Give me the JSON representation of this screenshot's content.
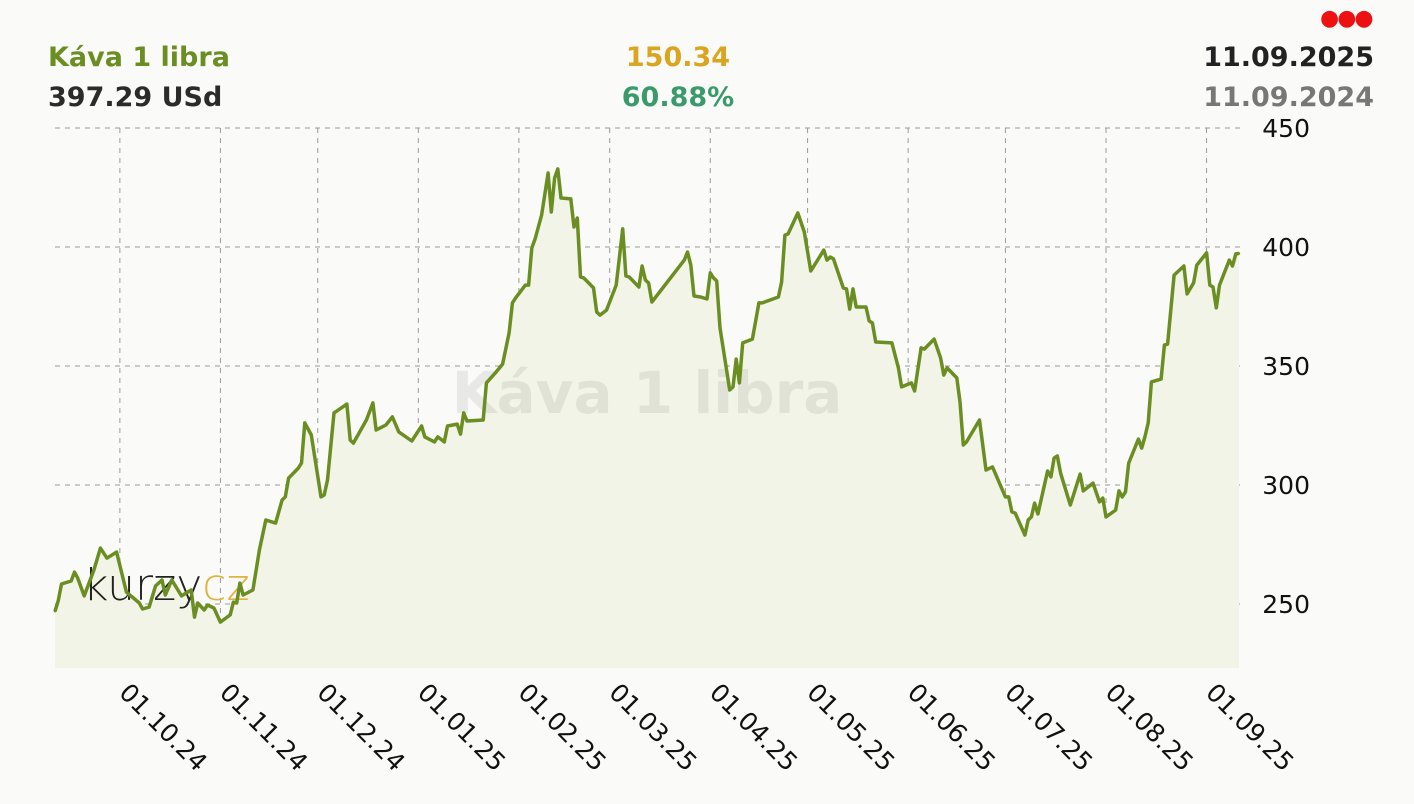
{
  "header": {
    "title": "Káva 1 libra",
    "price": "397.29 USd",
    "change_abs": "150.34",
    "change_pct": "60.88%",
    "date_to": "11.09.2025",
    "date_from": "11.09.2024",
    "menu_icon": "three-dots-menu-icon"
  },
  "colors": {
    "title": "#6b8e23",
    "price": "#2b2b2b",
    "change_abs": "#daa520",
    "change_pct": "#3a9a6a",
    "date_to": "#222222",
    "date_from": "#777777",
    "menu_dots": "#ee1111",
    "line": "#6b8e23",
    "fill": "#f1f4e6",
    "grid": "#9a9a9a",
    "logo_dark": "#222222",
    "logo_accent": "#e0b341"
  },
  "watermark": "Káva 1 libra",
  "logo": {
    "part1": "kurzy",
    "part2": "cz"
  },
  "chart_data": {
    "type": "area",
    "title": "Káva 1 libra",
    "xlabel": "",
    "ylabel": "",
    "xlim": [
      "2024-09-11",
      "2025-09-11"
    ],
    "ylim": [
      223,
      450
    ],
    "y_ticks": [
      450,
      400,
      350,
      300,
      250
    ],
    "y_axis_side": "right",
    "x_ticks": [
      "01.10.24",
      "01.11.24",
      "01.12.24",
      "01.01.25",
      "01.02.25",
      "01.03.25",
      "01.04.25",
      "01.05.25",
      "01.06.25",
      "01.07.25",
      "01.08.25",
      "01.09.25"
    ],
    "grid": true,
    "legend": "none",
    "series": [
      {
        "points": [
          [
            "2024-09-11",
            246.95
          ],
          [
            "2024-09-12",
            251.3
          ],
          [
            "2024-09-13",
            258.4
          ],
          [
            "2024-09-16",
            259.7
          ],
          [
            "2024-09-17",
            263.4
          ],
          [
            "2024-09-18",
            260.9
          ],
          [
            "2024-09-20",
            253.4
          ],
          [
            "2024-09-23",
            264.3
          ],
          [
            "2024-09-25",
            273.5
          ],
          [
            "2024-09-27",
            269.3
          ],
          [
            "2024-09-30",
            271.8
          ],
          [
            "2024-10-03",
            255.0
          ],
          [
            "2024-10-07",
            250.4
          ],
          [
            "2024-10-08",
            247.9
          ],
          [
            "2024-10-10",
            248.7
          ],
          [
            "2024-10-12",
            257.6
          ],
          [
            "2024-10-14",
            260.1
          ],
          [
            "2024-10-15",
            253.8
          ],
          [
            "2024-10-17",
            260.1
          ],
          [
            "2024-10-20",
            253.4
          ],
          [
            "2024-10-23",
            255.9
          ],
          [
            "2024-10-24",
            244.5
          ],
          [
            "2024-10-25",
            250.4
          ],
          [
            "2024-10-27",
            247.5
          ],
          [
            "2024-10-28",
            249.6
          ],
          [
            "2024-10-30",
            248.3
          ],
          [
            "2024-11-01",
            242.4
          ],
          [
            "2024-11-04",
            245.4
          ],
          [
            "2024-11-05",
            250.8
          ],
          [
            "2024-11-06",
            250.4
          ],
          [
            "2024-11-07",
            258.8
          ],
          [
            "2024-11-08",
            253.8
          ],
          [
            "2024-11-11",
            255.9
          ],
          [
            "2024-11-13",
            272.7
          ],
          [
            "2024-11-15",
            285.3
          ],
          [
            "2024-11-18",
            284.0
          ],
          [
            "2024-11-20",
            293.7
          ],
          [
            "2024-11-21",
            295.0
          ],
          [
            "2024-11-22",
            302.9
          ],
          [
            "2024-11-25",
            307.1
          ],
          [
            "2024-11-26",
            309.2
          ],
          [
            "2024-11-27",
            326.1
          ],
          [
            "2024-11-29",
            321.0
          ],
          [
            "2024-12-02",
            295.0
          ],
          [
            "2024-12-03",
            295.8
          ],
          [
            "2024-12-04",
            302.1
          ],
          [
            "2024-12-06",
            330.3
          ],
          [
            "2024-12-10",
            334.0
          ],
          [
            "2024-12-11",
            318.9
          ],
          [
            "2024-12-12",
            317.6
          ],
          [
            "2024-12-16",
            327.3
          ],
          [
            "2024-12-18",
            334.5
          ],
          [
            "2024-12-19",
            323.1
          ],
          [
            "2024-12-22",
            325.2
          ],
          [
            "2024-12-24",
            328.6
          ],
          [
            "2024-12-26",
            322.3
          ],
          [
            "2024-12-30",
            318.5
          ],
          [
            "2025-01-02",
            324.8
          ],
          [
            "2025-01-03",
            320.2
          ],
          [
            "2025-01-06",
            318.1
          ],
          [
            "2025-01-07",
            320.2
          ],
          [
            "2025-01-09",
            318.1
          ],
          [
            "2025-01-10",
            324.8
          ],
          [
            "2025-01-13",
            325.6
          ],
          [
            "2025-01-14",
            321.4
          ],
          [
            "2025-01-15",
            330.3
          ],
          [
            "2025-01-16",
            326.9
          ],
          [
            "2025-01-21",
            327.3
          ],
          [
            "2025-01-22",
            342.9
          ],
          [
            "2025-01-25",
            347.5
          ],
          [
            "2025-01-27",
            350.8
          ],
          [
            "2025-01-29",
            363.9
          ],
          [
            "2025-01-30",
            376.5
          ],
          [
            "2025-01-31",
            378.6
          ],
          [
            "2025-02-03",
            384.0
          ],
          [
            "2025-02-04",
            384.0
          ],
          [
            "2025-02-05",
            399.6
          ],
          [
            "2025-02-06",
            403.4
          ],
          [
            "2025-02-08",
            413.4
          ],
          [
            "2025-02-10",
            431.1
          ],
          [
            "2025-02-11",
            414.7
          ],
          [
            "2025-02-12",
            429.0
          ],
          [
            "2025-02-13",
            432.8
          ],
          [
            "2025-02-14",
            420.6
          ],
          [
            "2025-02-17",
            420.2
          ],
          [
            "2025-02-18",
            408.4
          ],
          [
            "2025-02-19",
            412.2
          ],
          [
            "2025-02-20",
            387.4
          ],
          [
            "2025-02-21",
            387.0
          ],
          [
            "2025-02-24",
            382.8
          ],
          [
            "2025-02-25",
            372.7
          ],
          [
            "2025-02-26",
            371.4
          ],
          [
            "2025-02-28",
            373.5
          ],
          [
            "2025-03-03",
            384.0
          ],
          [
            "2025-03-05",
            407.6
          ],
          [
            "2025-03-06",
            387.8
          ],
          [
            "2025-03-07",
            387.4
          ],
          [
            "2025-03-10",
            383.2
          ],
          [
            "2025-03-11",
            392.0
          ],
          [
            "2025-03-12",
            386.1
          ],
          [
            "2025-03-13",
            384.9
          ],
          [
            "2025-03-14",
            376.9
          ],
          [
            "2025-03-24",
            394.5
          ],
          [
            "2025-03-25",
            397.9
          ],
          [
            "2025-03-26",
            392.4
          ],
          [
            "2025-03-27",
            379.4
          ],
          [
            "2025-03-29",
            379.0
          ],
          [
            "2025-03-31",
            378.2
          ],
          [
            "2025-04-01",
            389.1
          ],
          [
            "2025-04-02",
            387.0
          ],
          [
            "2025-04-03",
            385.7
          ],
          [
            "2025-04-04",
            366.0
          ],
          [
            "2025-04-07",
            339.9
          ],
          [
            "2025-04-08",
            341.2
          ],
          [
            "2025-04-09",
            352.9
          ],
          [
            "2025-04-10",
            342.9
          ],
          [
            "2025-04-11",
            359.7
          ],
          [
            "2025-04-14",
            361.3
          ],
          [
            "2025-04-16",
            376.5
          ],
          [
            "2025-04-17",
            376.5
          ],
          [
            "2025-04-22",
            379.0
          ],
          [
            "2025-04-23",
            385.3
          ],
          [
            "2025-04-24",
            405.0
          ],
          [
            "2025-04-25",
            405.5
          ],
          [
            "2025-04-28",
            414.3
          ],
          [
            "2025-04-30",
            406.3
          ],
          [
            "2025-05-02",
            389.9
          ],
          [
            "2025-05-06",
            398.7
          ],
          [
            "2025-05-07",
            394.5
          ],
          [
            "2025-05-08",
            395.8
          ],
          [
            "2025-05-09",
            395.0
          ],
          [
            "2025-05-12",
            382.8
          ],
          [
            "2025-05-13",
            382.4
          ],
          [
            "2025-05-14",
            373.9
          ],
          [
            "2025-05-15",
            382.4
          ],
          [
            "2025-05-16",
            374.8
          ],
          [
            "2025-05-19",
            374.8
          ],
          [
            "2025-05-20",
            368.9
          ],
          [
            "2025-05-21",
            368.1
          ],
          [
            "2025-05-22",
            360.1
          ],
          [
            "2025-05-27",
            359.7
          ],
          [
            "2025-05-29",
            349.2
          ],
          [
            "2025-05-30",
            341.2
          ],
          [
            "2025-06-02",
            342.9
          ],
          [
            "2025-06-03",
            339.5
          ],
          [
            "2025-06-05",
            357.6
          ],
          [
            "2025-06-06",
            357.1
          ],
          [
            "2025-06-09",
            361.3
          ],
          [
            "2025-06-11",
            353.4
          ],
          [
            "2025-06-12",
            346.2
          ],
          [
            "2025-06-13",
            349.2
          ],
          [
            "2025-06-16",
            345.0
          ],
          [
            "2025-06-17",
            334.9
          ],
          [
            "2025-06-18",
            316.8
          ],
          [
            "2025-06-19",
            318.1
          ],
          [
            "2025-06-23",
            327.3
          ],
          [
            "2025-06-25",
            306.3
          ],
          [
            "2025-06-27",
            307.6
          ],
          [
            "2025-07-01",
            295.0
          ],
          [
            "2025-07-02",
            295.0
          ],
          [
            "2025-07-03",
            288.7
          ],
          [
            "2025-07-04",
            288.2
          ],
          [
            "2025-07-07",
            279.0
          ],
          [
            "2025-07-08",
            285.3
          ],
          [
            "2025-07-09",
            286.6
          ],
          [
            "2025-07-10",
            292.4
          ],
          [
            "2025-07-11",
            287.8
          ],
          [
            "2025-07-14",
            305.9
          ],
          [
            "2025-07-15",
            303.4
          ],
          [
            "2025-07-16",
            311.3
          ],
          [
            "2025-07-17",
            312.2
          ],
          [
            "2025-07-18",
            305.0
          ],
          [
            "2025-07-21",
            291.6
          ],
          [
            "2025-07-24",
            304.6
          ],
          [
            "2025-07-25",
            297.5
          ],
          [
            "2025-07-28",
            300.8
          ],
          [
            "2025-07-30",
            292.9
          ],
          [
            "2025-07-31",
            294.5
          ],
          [
            "2025-08-01",
            286.6
          ],
          [
            "2025-08-04",
            289.5
          ],
          [
            "2025-08-05",
            297.5
          ],
          [
            "2025-08-06",
            295.0
          ],
          [
            "2025-08-07",
            297.1
          ],
          [
            "2025-08-08",
            309.2
          ],
          [
            "2025-08-11",
            319.3
          ],
          [
            "2025-08-12",
            315.5
          ],
          [
            "2025-08-13",
            320.2
          ],
          [
            "2025-08-14",
            326.1
          ],
          [
            "2025-08-15",
            343.3
          ],
          [
            "2025-08-18",
            344.5
          ],
          [
            "2025-08-19",
            358.8
          ],
          [
            "2025-08-20",
            359.2
          ],
          [
            "2025-08-22",
            388.2
          ],
          [
            "2025-08-25",
            392.0
          ],
          [
            "2025-08-26",
            380.3
          ],
          [
            "2025-08-28",
            384.9
          ],
          [
            "2025-08-29",
            392.4
          ],
          [
            "2025-09-01",
            397.5
          ],
          [
            "2025-09-02",
            384.0
          ],
          [
            "2025-09-03",
            383.2
          ],
          [
            "2025-09-04",
            374.4
          ],
          [
            "2025-09-05",
            384.0
          ],
          [
            "2025-09-08",
            394.5
          ],
          [
            "2025-09-09",
            392.0
          ],
          [
            "2025-09-10",
            397.1
          ],
          [
            "2025-09-11",
            397.29
          ]
        ]
      }
    ]
  }
}
